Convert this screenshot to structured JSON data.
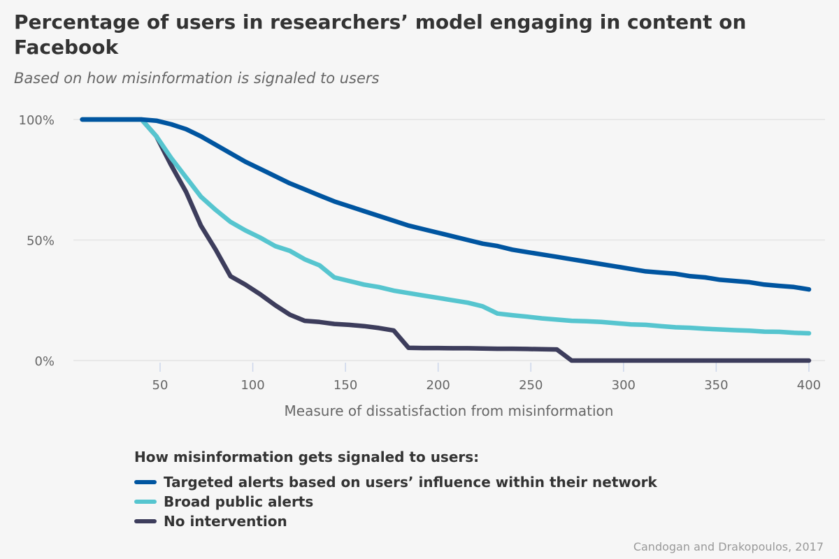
{
  "chart_data": {
    "type": "line",
    "title": "Percentage of users in researchers’ model engaging in content on Facebook",
    "subtitle": "Based on how misinformation is signaled to users",
    "xlabel": "Measure of dissatisfaction from misinformation",
    "ylabel": "",
    "xlim": [
      8,
      400
    ],
    "ylim": [
      0,
      100
    ],
    "x_ticks": [
      50,
      100,
      150,
      200,
      250,
      300,
      350,
      400
    ],
    "y_ticks": [
      "0%",
      "50%",
      "100%"
    ],
    "grid": true,
    "legend_title": "How misinformation gets signaled to users:",
    "legend_position": "bottom",
    "credit": "Candogan and Drakopoulos, 2017",
    "x": [
      8,
      16,
      24,
      32,
      40,
      48,
      56,
      64,
      72,
      80,
      88,
      96,
      104,
      112,
      120,
      128,
      136,
      144,
      152,
      160,
      168,
      176,
      184,
      192,
      200,
      208,
      216,
      224,
      232,
      240,
      248,
      256,
      264,
      272,
      280,
      288,
      296,
      304,
      312,
      320,
      328,
      336,
      344,
      352,
      360,
      368,
      376,
      384,
      392,
      400
    ],
    "series": [
      {
        "name": "Targeted alerts based on users’ influence within their network",
        "color": "#0055a0",
        "values": [
          100,
          100,
          100,
          100,
          100,
          99.5,
          98,
          96,
          93,
          89.5,
          86,
          82.5,
          79.5,
          76.5,
          73.5,
          71,
          68.5,
          66,
          64,
          62,
          60,
          58,
          56,
          54.5,
          53,
          51.5,
          50,
          48.5,
          47.5,
          46,
          45,
          44,
          43,
          42,
          41,
          40,
          39,
          38,
          37,
          36.5,
          36,
          35,
          34.5,
          33.5,
          33,
          32.5,
          31.5,
          31,
          30.5,
          29.5
        ]
      },
      {
        "name": "Broad public alerts",
        "color": "#56c5cf",
        "values": [
          100,
          100,
          100,
          100,
          100,
          93,
          84,
          76,
          68,
          62.5,
          57.5,
          54,
          51,
          47.5,
          45.5,
          42,
          39.5,
          34.5,
          33,
          31.5,
          30.5,
          29,
          28,
          27,
          26,
          25,
          24,
          22.5,
          19.5,
          18.8,
          18.2,
          17.5,
          17,
          16.5,
          16.3,
          16,
          15.5,
          15,
          14.8,
          14.3,
          13.8,
          13.6,
          13.2,
          12.9,
          12.6,
          12.4,
          12,
          11.9,
          11.5,
          11.3
        ]
      },
      {
        "name": "No intervention",
        "color": "#3d3d5c",
        "values": [
          100,
          100,
          100,
          100,
          100,
          93,
          81,
          70,
          56,
          46,
          35,
          31.5,
          27.5,
          23,
          19,
          16.5,
          16,
          15.2,
          14.8,
          14.3,
          13.5,
          12.5,
          5.3,
          5.2,
          5.2,
          5.1,
          5.1,
          5,
          4.9,
          4.9,
          4.8,
          4.7,
          4.6,
          0,
          0,
          0,
          0,
          0,
          0,
          0,
          0,
          0,
          0,
          0,
          0,
          0,
          0,
          0,
          0,
          0
        ]
      }
    ]
  }
}
